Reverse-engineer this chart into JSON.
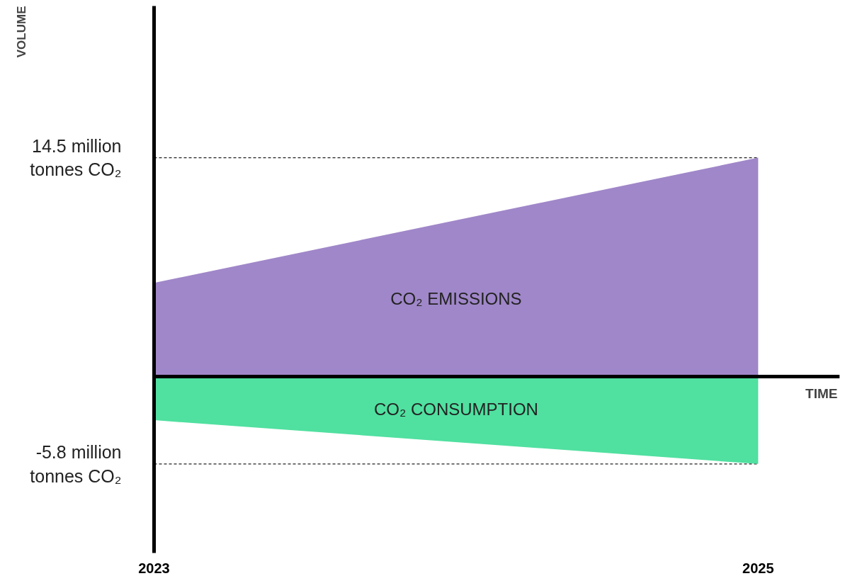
{
  "chart_data": {
    "type": "area",
    "xlabel": "TIME",
    "ylabel": "VOLUME",
    "x": [
      2023,
      2025
    ],
    "xlim": [
      2023,
      2025.27
    ],
    "xticks": [
      2023,
      2025
    ],
    "ylim": [
      -11.7,
      24.55
    ],
    "yticks": [
      {
        "value": 14.5,
        "label": "14.5 million\ntonnes CO₂"
      },
      {
        "value": -5.8,
        "label": "-5.8 million\ntonnes CO₂"
      }
    ],
    "series": [
      {
        "name": "CO₂ EMISSIONS",
        "color": "#a087c9",
        "values": [
          6.2,
          14.5
        ]
      },
      {
        "name": "CO₂ CONSUMPTION",
        "color": "#50e0a0",
        "values": [
          -2.9,
          -5.8
        ]
      }
    ],
    "ref_lines": [
      {
        "axis": "y",
        "value": 14.5,
        "color": "#222222",
        "line_style": "dashed"
      },
      {
        "axis": "y",
        "value": -5.8,
        "color": "#222222",
        "line_style": "dashed"
      }
    ],
    "grid": false
  }
}
